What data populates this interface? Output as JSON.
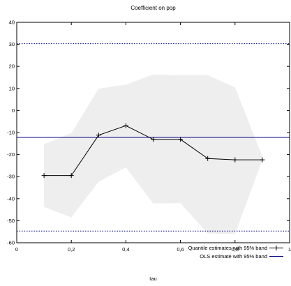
{
  "chart_data": {
    "type": "line",
    "title": "Coefficient on pop",
    "xlabel": "tau",
    "ylabel": "",
    "xlim": [
      0,
      1
    ],
    "ylim": [
      -60,
      40
    ],
    "x_ticks": [
      0,
      0.2,
      0.4,
      0.6,
      0.8,
      1
    ],
    "x_tick_labels": [
      "0",
      "0,2",
      "0,4",
      "0,6",
      "0,8",
      "1"
    ],
    "y_ticks": [
      40,
      30,
      20,
      10,
      0,
      -10,
      -20,
      -30,
      -40,
      -50,
      -60
    ],
    "y_tick_labels": [
      "40",
      "30",
      "20",
      "10",
      "0",
      "-10",
      "-20",
      "-30",
      "-40",
      "-50",
      "-60"
    ],
    "grid": false,
    "legend_position": "bottom-right",
    "series": [
      {
        "name": "Quantile estimates with 95% band",
        "style": "line-with-plus-markers",
        "color": "#000000",
        "x": [
          0.1,
          0.2,
          0.3,
          0.4,
          0.5,
          0.6,
          0.7,
          0.8,
          0.9
        ],
        "values": [
          -29.5,
          -29.5,
          -11.2,
          -6.9,
          -13.1,
          -13.1,
          -21.8,
          -22.4,
          -22.4
        ]
      }
    ],
    "band": {
      "color": "#eeeeee",
      "x": [
        0.1,
        0.2,
        0.3,
        0.4,
        0.5,
        0.6,
        0.7,
        0.8,
        0.9
      ],
      "upper": [
        -15.3,
        -10.3,
        9.9,
        11.7,
        16.3,
        16.0,
        16.0,
        10.5,
        -20.8
      ],
      "lower": [
        -43.8,
        -48.5,
        -32.3,
        -25.8,
        -42.2,
        -42.0,
        -55.8,
        -56.0,
        -22.5
      ]
    },
    "ols": {
      "name": "OLS estimate with 95% band",
      "color": "#00008b",
      "estimate": -12.2,
      "upper": 30.3,
      "lower": -54.7
    }
  }
}
